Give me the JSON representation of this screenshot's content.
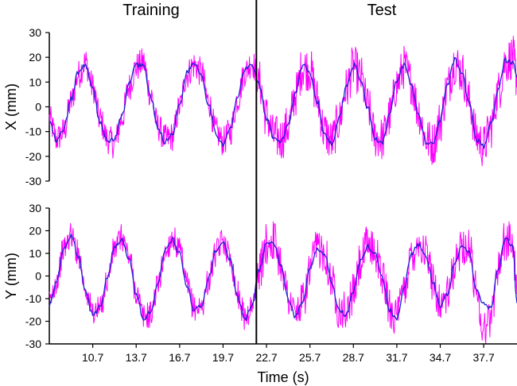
{
  "sections": {
    "training_label": "Training",
    "test_label": "Test",
    "split_time": 22.0
  },
  "colors": {
    "raw": "#ff00ff",
    "filtered": "#1a22cc",
    "axis": "#000000"
  },
  "x_axis": {
    "label": "Time (s)",
    "range": [
      7.7,
      40.0
    ],
    "ticks": [
      10.7,
      13.7,
      16.7,
      19.7,
      22.7,
      25.7,
      28.7,
      31.7,
      34.7,
      37.7
    ]
  },
  "chart_data": [
    {
      "type": "line",
      "title": "",
      "xlabel": "",
      "ylabel": "X (mm)",
      "ylim": [
        -30,
        30
      ],
      "yticks": [
        -30,
        -20,
        -10,
        0,
        10,
        20,
        30
      ],
      "x": [
        7.7,
        8.2,
        8.7,
        9.2,
        9.7,
        10.2,
        10.7,
        11.2,
        11.7,
        12.2,
        12.7,
        13.2,
        13.7,
        14.2,
        14.7,
        15.2,
        15.7,
        16.2,
        16.7,
        17.2,
        17.7,
        18.2,
        18.7,
        19.2,
        19.7,
        20.2,
        20.7,
        21.2,
        21.7,
        22.2,
        22.7,
        23.2,
        23.7,
        24.2,
        24.7,
        25.2,
        25.7,
        26.2,
        26.7,
        27.2,
        27.7,
        28.2,
        28.7,
        29.2,
        29.7,
        30.2,
        30.7,
        31.2,
        31.7,
        32.2,
        32.7,
        33.2,
        33.7,
        34.2,
        34.7,
        35.2,
        35.7,
        36.2,
        36.7,
        37.2,
        37.7,
        38.2,
        38.7,
        39.2,
        39.7,
        40.0
      ],
      "series": [
        {
          "role": "raw",
          "values": [
            -5,
            -13,
            -10,
            2,
            13,
            18,
            8,
            -5,
            -13,
            -15,
            -5,
            8,
            16,
            18,
            5,
            -8,
            -13,
            -12,
            0,
            13,
            17,
            14,
            2,
            -10,
            -14,
            -10,
            3,
            14,
            18,
            10,
            -4,
            -12,
            -13,
            -8,
            5,
            16,
            15,
            3,
            -10,
            -14,
            -6,
            7,
            16,
            12,
            0,
            -12,
            -13,
            -4,
            9,
            16,
            10,
            -2,
            -13,
            -15,
            -6,
            8,
            18,
            14,
            2,
            -12,
            -16,
            -8,
            6,
            18,
            20,
            12
          ]
        },
        {
          "role": "filtered",
          "values": [
            -6,
            -14,
            -9,
            3,
            14,
            17,
            7,
            -6,
            -14,
            -13,
            -4,
            9,
            17,
            17,
            4,
            -9,
            -14,
            -11,
            1,
            14,
            18,
            13,
            1,
            -11,
            -15,
            -9,
            4,
            15,
            17,
            9,
            -5,
            -13,
            -14,
            -7,
            6,
            17,
            14,
            2,
            -11,
            -15,
            -5,
            8,
            17,
            11,
            -1,
            -13,
            -14,
            -3,
            10,
            17,
            9,
            -3,
            -14,
            -15,
            -5,
            9,
            19,
            13,
            1,
            -13,
            -16,
            -7,
            7,
            19,
            18,
            12
          ]
        }
      ]
    },
    {
      "type": "line",
      "title": "",
      "xlabel": "Time (s)",
      "ylabel": "Y (mm)",
      "ylim": [
        -30,
        30
      ],
      "yticks": [
        -30,
        -20,
        -10,
        0,
        10,
        20,
        30
      ],
      "x": [
        7.7,
        8.2,
        8.7,
        9.2,
        9.7,
        10.2,
        10.7,
        11.2,
        11.7,
        12.2,
        12.7,
        13.2,
        13.7,
        14.2,
        14.7,
        15.2,
        15.7,
        16.2,
        16.7,
        17.2,
        17.7,
        18.2,
        18.7,
        19.2,
        19.7,
        20.2,
        20.7,
        21.2,
        21.7,
        22.2,
        22.7,
        23.2,
        23.7,
        24.2,
        24.7,
        25.2,
        25.7,
        26.2,
        26.7,
        27.2,
        27.7,
        28.2,
        28.7,
        29.2,
        29.7,
        30.2,
        30.7,
        31.2,
        31.7,
        32.2,
        32.7,
        33.2,
        33.7,
        34.2,
        34.7,
        35.2,
        35.7,
        36.2,
        36.7,
        37.2,
        37.7,
        38.2,
        38.7,
        39.2,
        39.7,
        40.0
      ],
      "series": [
        {
          "role": "raw",
          "values": [
            -12,
            -2,
            12,
            18,
            10,
            -6,
            -16,
            -15,
            -2,
            12,
            17,
            9,
            -7,
            -18,
            -17,
            -4,
            10,
            17,
            11,
            -4,
            -14,
            -14,
            -2,
            10,
            16,
            8,
            -8,
            -18,
            -14,
            2,
            14,
            16,
            6,
            -9,
            -17,
            -12,
            2,
            13,
            11,
            -2,
            -14,
            -16,
            -8,
            6,
            14,
            11,
            0,
            -14,
            -18,
            -6,
            9,
            15,
            10,
            -2,
            -12,
            -9,
            4,
            14,
            12,
            -6,
            -24,
            -18,
            4,
            16,
            14,
            -8
          ]
        },
        {
          "role": "filtered",
          "values": [
            -13,
            -3,
            13,
            18,
            9,
            -7,
            -17,
            -14,
            -1,
            13,
            16,
            8,
            -8,
            -19,
            -16,
            -3,
            11,
            16,
            10,
            -5,
            -15,
            -13,
            -1,
            11,
            15,
            7,
            -9,
            -19,
            -13,
            3,
            15,
            15,
            5,
            -10,
            -18,
            -11,
            3,
            12,
            10,
            -3,
            -15,
            -17,
            -7,
            7,
            13,
            10,
            -1,
            -15,
            -19,
            -5,
            10,
            14,
            9,
            -3,
            -13,
            -8,
            5,
            13,
            11,
            -7,
            -12,
            -14,
            3,
            17,
            13,
            -12
          ]
        }
      ]
    }
  ]
}
